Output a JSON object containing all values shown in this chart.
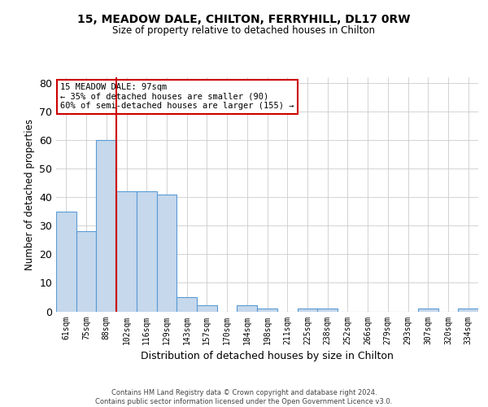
{
  "title1": "15, MEADOW DALE, CHILTON, FERRYHILL, DL17 0RW",
  "title2": "Size of property relative to detached houses in Chilton",
  "xlabel": "Distribution of detached houses by size in Chilton",
  "ylabel": "Number of detached properties",
  "categories": [
    "61sqm",
    "75sqm",
    "88sqm",
    "102sqm",
    "116sqm",
    "129sqm",
    "143sqm",
    "157sqm",
    "170sqm",
    "184sqm",
    "198sqm",
    "211sqm",
    "225sqm",
    "238sqm",
    "252sqm",
    "266sqm",
    "279sqm",
    "293sqm",
    "307sqm",
    "320sqm",
    "334sqm"
  ],
  "values": [
    35,
    28,
    60,
    42,
    42,
    41,
    5,
    2,
    0,
    2,
    1,
    0,
    1,
    1,
    0,
    0,
    0,
    0,
    1,
    0,
    1
  ],
  "bar_color": "#c5d8ec",
  "bar_edge_color": "#5b9bd5",
  "annotation_line1": "15 MEADOW DALE: 97sqm",
  "annotation_line2": "← 35% of detached houses are smaller (90)",
  "annotation_line3": "60% of semi-detached houses are larger (155) →",
  "annotation_box_color": "#ffffff",
  "annotation_box_edge_color": "#cc0000",
  "vline_x": 2.5,
  "vline_color": "#cc0000",
  "ylim": [
    0,
    82
  ],
  "yticks": [
    0,
    10,
    20,
    30,
    40,
    50,
    60,
    70,
    80
  ],
  "footer": "Contains HM Land Registry data © Crown copyright and database right 2024.\nContains public sector information licensed under the Open Government Licence v3.0.",
  "background_color": "#ffffff",
  "grid_color": "#cccccc"
}
